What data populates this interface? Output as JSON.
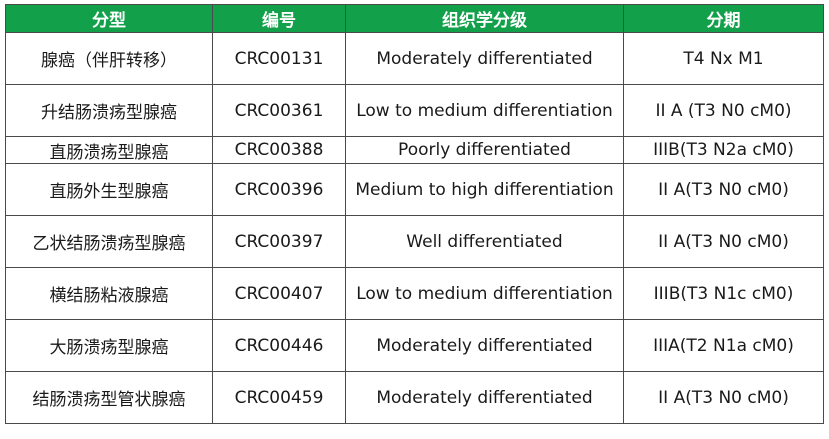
{
  "headers": [
    "分型",
    "编号",
    "组织学分级",
    "分期"
  ],
  "header_color": "#12a04a",
  "rows": [
    {
      "type": "腺癌（伴肝转移）",
      "id": "CRC00131",
      "grade": "Moderately differentiated",
      "stage": "T4 Nx M1"
    },
    {
      "type": "升结肠溃疡型腺癌",
      "id": "CRC00361",
      "grade": "Low to medium differentiation",
      "stage": "II A (T3 N0 cM0)"
    },
    {
      "type": "直肠溃疡型腺癌",
      "id": "CRC00388",
      "grade": "Poorly differentiated",
      "stage": "IIIB(T3 N2a cM0)"
    },
    {
      "type": "直肠外生型腺癌",
      "id": "CRC00396",
      "grade": "Medium to high differentiation",
      "stage": "II A(T3 N0 cM0)"
    },
    {
      "type": "乙状结肠溃疡型腺癌",
      "id": "CRC00397",
      "grade": "Well differentiated",
      "stage": "II A(T3 N0 cM0)"
    },
    {
      "type": "横结肠粘液腺癌",
      "id": "CRC00407",
      "grade": "Low to medium differentiation",
      "stage": "IIIB(T3 N1c cM0)"
    },
    {
      "type": "大肠溃疡型腺癌",
      "id": "CRC00446",
      "grade": "Moderately differentiated",
      "stage": "IIIA(T2 N1a cM0)"
    },
    {
      "type": "结肠溃疡型管状腺癌",
      "id": "CRC00459",
      "grade": "Moderately differentiated",
      "stage": "II A(T3 N0 cM0)"
    }
  ]
}
